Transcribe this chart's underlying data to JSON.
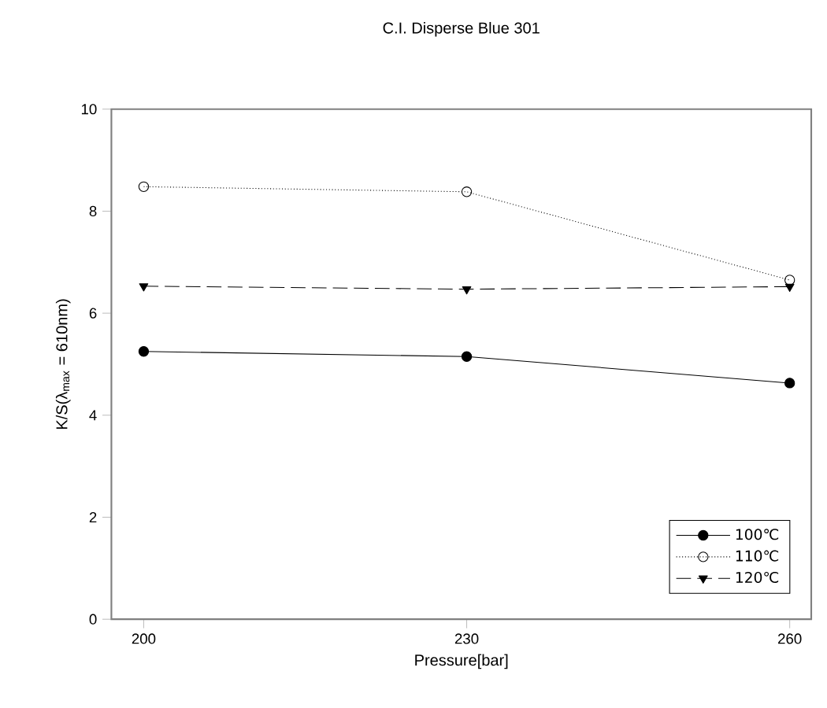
{
  "chart_data": {
    "type": "line",
    "title": "C.I. Disperse Blue 301",
    "xlabel": "Pressure[bar]",
    "ylabel": "K/S(λ$_{max}$ = 610nm)",
    "x": [
      200,
      230,
      260
    ],
    "xlim": [
      197,
      262
    ],
    "xticks": [
      200,
      230,
      260
    ],
    "ylim": [
      0,
      10
    ],
    "yticks": [
      0,
      2,
      4,
      6,
      8,
      10
    ],
    "legend": "bottom right",
    "grid": false,
    "series": [
      {
        "name": "100℃",
        "color": "#000000",
        "marker": "circle",
        "line_style": "solid",
        "values": [
          5.25,
          5.15,
          4.63
        ]
      },
      {
        "name": "110℃",
        "color": "#000000",
        "marker": "open circle",
        "line_style": "dotted",
        "values": [
          8.48,
          8.38,
          6.65
        ]
      },
      {
        "name": "120℃",
        "color": "#000000",
        "marker": "triangle down",
        "line_style": "dashed",
        "values": [
          6.53,
          6.47,
          6.52
        ]
      }
    ]
  }
}
